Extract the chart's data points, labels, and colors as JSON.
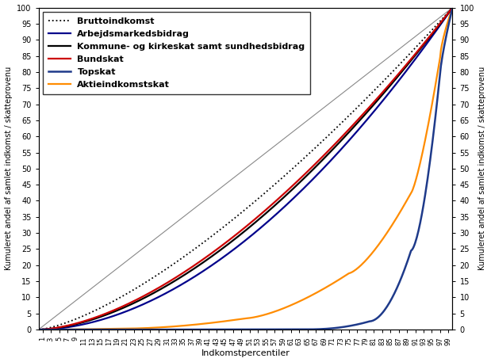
{
  "xlabel": "Indkomstpercentiler",
  "ylabel_left": "Kumuleret andel af samlet indkomst / skatteprovenu",
  "ylabel_right": "Kumuleret andel af samlet indkomst / skatteprovenu",
  "ylim": [
    0,
    100
  ],
  "xlim": [
    0,
    100
  ],
  "background_color": "#ffffff",
  "series": {
    "Bruttoindkomst": {
      "color": "#000000",
      "linestyle": "dotted",
      "linewidth": 1.3,
      "label": "Bruttoindkomst"
    },
    "Arbejdsmarkedsbidrag": {
      "color": "#00008B",
      "linestyle": "solid",
      "linewidth": 1.6,
      "label": "Arbejdsmarkedsbidrag"
    },
    "Kommune": {
      "color": "#000000",
      "linestyle": "solid",
      "linewidth": 1.6,
      "label": "Kommune- og kirkeskat samt sundhedsbidrag"
    },
    "Bundskat": {
      "color": "#CC0000",
      "linestyle": "solid",
      "linewidth": 1.6,
      "label": "Bundskat"
    },
    "Topskat": {
      "color": "#1E3A8A",
      "linestyle": "solid",
      "linewidth": 1.8,
      "label": "Topskat"
    },
    "Aktieindkomstskat": {
      "color": "#FF8C00",
      "linestyle": "solid",
      "linewidth": 1.6,
      "label": "Aktieindkomstskat"
    }
  },
  "legend_fontsize": 8,
  "axis_fontsize": 8,
  "tick_fontsize": 7,
  "xtick_fontsize": 6
}
